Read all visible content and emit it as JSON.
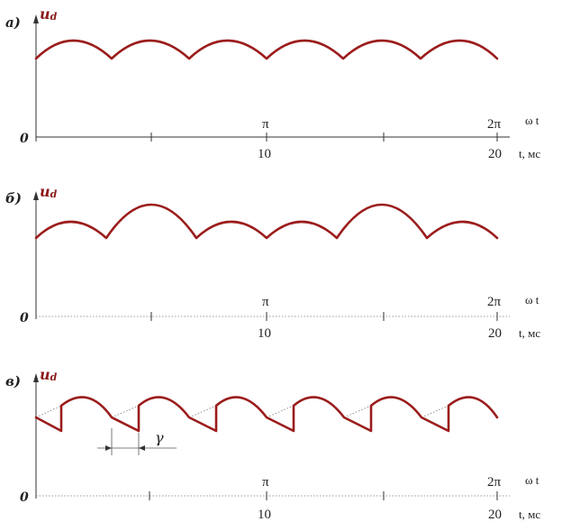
{
  "panels": [
    {
      "label": "а)",
      "y_label": "u",
      "y_subscript": "d",
      "origin_label": "0",
      "pi_label": "π",
      "twopi_label": "2π",
      "x_label_angle": "ω t",
      "t_ticks": [
        "10",
        "20"
      ],
      "t_unit": "t, мс"
    },
    {
      "label": "б)",
      "y_label": "u",
      "y_subscript": "d",
      "origin_label": "0",
      "pi_label": "π",
      "twopi_label": "2π",
      "x_label_angle": "ω t",
      "t_ticks": [
        "10",
        "20"
      ],
      "t_unit": "t, мс"
    },
    {
      "label": "в)",
      "y_label": "u",
      "y_subscript": "d",
      "origin_label": "0",
      "pi_label": "π",
      "twopi_label": "2π",
      "x_label_angle": "ω t",
      "t_ticks": [
        "10",
        "20"
      ],
      "t_unit": "t, мс",
      "gamma_label": "γ"
    }
  ],
  "colors": {
    "curve": "#9b1c1c",
    "axis": "#333333"
  }
}
